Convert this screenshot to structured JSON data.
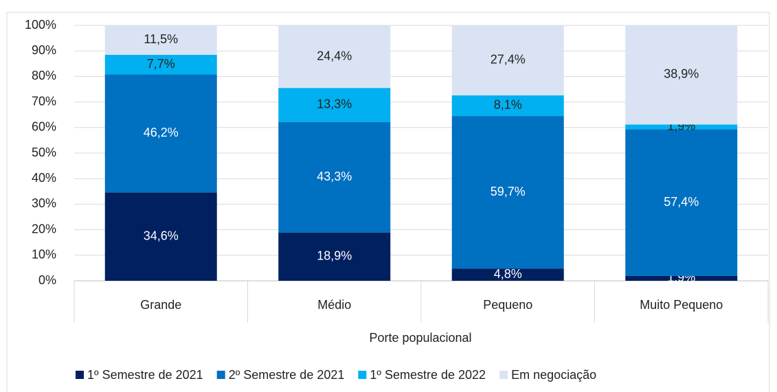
{
  "chart_data": {
    "type": "stacked_bar",
    "categories": [
      "Grande",
      "Médio",
      "Pequeno",
      "Muito Pequeno"
    ],
    "x_label": "Porte populacional",
    "series": [
      {
        "name": "1º Semestre de 2021",
        "color": "#002060",
        "values": [
          34.6,
          18.9,
          4.8,
          1.9
        ],
        "value_labels": [
          "34,6%",
          "18,9%",
          "4,8%",
          "1,9%"
        ]
      },
      {
        "name": "2º Semestre de 2021",
        "color": "#0070c0",
        "values": [
          46.2,
          43.3,
          59.7,
          57.4
        ],
        "value_labels": [
          "46,2%",
          "43,3%",
          "59,7%",
          "57,4%"
        ]
      },
      {
        "name": "1º Semestre de 2022",
        "color": "#00b0f0",
        "values": [
          7.7,
          13.3,
          8.1,
          1.9
        ],
        "value_labels": [
          "7,7%",
          "13,3%",
          "8,1%",
          "1,9%"
        ]
      },
      {
        "name": "Em negociação",
        "color": "#dae3f3",
        "values": [
          11.5,
          24.4,
          27.4,
          38.9
        ],
        "value_labels": [
          "11,5%",
          "24,4%",
          "27,4%",
          "38,9%"
        ]
      }
    ],
    "ylim": [
      0,
      100
    ],
    "yticks": [
      {
        "value": 0,
        "label": "0%"
      },
      {
        "value": 10,
        "label": "10%"
      },
      {
        "value": 20,
        "label": "20%"
      },
      {
        "value": 30,
        "label": "30%"
      },
      {
        "value": 40,
        "label": "40%"
      },
      {
        "value": 50,
        "label": "50%"
      },
      {
        "value": 60,
        "label": "60%"
      },
      {
        "value": 70,
        "label": "70%"
      },
      {
        "value": 80,
        "label": "80%"
      },
      {
        "value": 90,
        "label": "90%"
      },
      {
        "value": 100,
        "label": "100%"
      }
    ],
    "grid": true,
    "legend": "bottom"
  }
}
